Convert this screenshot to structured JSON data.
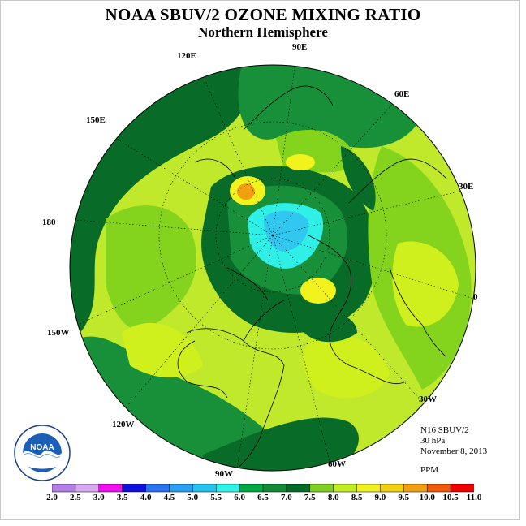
{
  "title": "NOAA SBUV/2 OZONE MIXING RATIO",
  "subtitle": "Northern Hemisphere",
  "longitude_labels": [
    "90E",
    "60E",
    "30E",
    "0",
    "30W",
    "60W",
    "90W",
    "120W",
    "150W",
    "180",
    "150E",
    "120E"
  ],
  "info": {
    "instrument": "N16 SBUV/2",
    "level": "30 hPa",
    "date": "November 8, 2013",
    "units": "PPM"
  },
  "logo": {
    "text": "NOAA"
  },
  "colorbar": {
    "ticks": [
      "2.0",
      "2.5",
      "3.0",
      "3.5",
      "4.0",
      "4.5",
      "5.0",
      "5.5",
      "6.0",
      "6.5",
      "7.0",
      "7.5",
      "8.0",
      "8.5",
      "9.0",
      "9.5",
      "10.0",
      "10.5",
      "11.0"
    ],
    "colors": [
      "#b67fe8",
      "#d9a8f0",
      "#ee10ee",
      "#1010dd",
      "#2a72f0",
      "#2aa0f2",
      "#25c4ee",
      "#2ff4e8",
      "#00a843",
      "#108c38",
      "#076a26",
      "#80d020",
      "#c0ee20",
      "#f0f020",
      "#f0d010",
      "#f0a010",
      "#f05a08",
      "#f00000",
      "#8a5a3c"
    ]
  },
  "colors": {
    "ocean_background": "#bfe92a",
    "dark_green": "#086c28",
    "mid_green": "#18903a",
    "light_green": "#84d41e",
    "yellow_green": "#d0f01e",
    "yellow": "#f2f21c",
    "orange": "#f0a010",
    "cyan": "#2ff0e6",
    "light_blue": "#30c8f0"
  }
}
